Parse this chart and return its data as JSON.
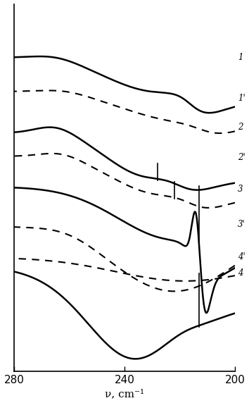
{
  "xlabel": "ν, cm⁻¹",
  "xlim": [
    280,
    200
  ],
  "x_ticks": [
    280,
    240,
    200
  ],
  "background": "#ffffff",
  "figsize": [
    3.54,
    5.72
  ],
  "dpi": 100
}
